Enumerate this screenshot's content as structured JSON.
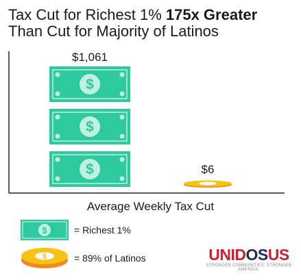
{
  "title": {
    "part1": "Tax Cut for Richest 1% ",
    "bold": "175x Greater",
    "part2": "Than Cut for Majority of Latinos"
  },
  "chart_data": {
    "type": "bar",
    "title": "Tax Cut for Richest 1% 175x Greater Than Cut for Majority of Latinos",
    "xlabel": "Average Weekly Tax Cut",
    "ylabel": "",
    "categories": [
      "Richest 1%",
      "89% of Latinos"
    ],
    "values": [
      1061,
      6
    ],
    "data_labels": [
      "$1,061",
      "$6"
    ],
    "ylim": [
      0,
      1061
    ],
    "grid": false,
    "legend_position": "bottom-left",
    "legend": [
      {
        "label": "= Richest 1%",
        "icon": "dollar-bill-icon",
        "color": "#2fc9a0"
      },
      {
        "label": "= 89% of Latinos",
        "icon": "gold-coin-icon",
        "color": "#f7c215"
      }
    ]
  },
  "colors": {
    "bill": "#2fc9a0",
    "bill_light": "#bff0e0",
    "coin_gold": "#f7c215",
    "coin_orange": "#f08a1a",
    "brand_red": "#d11f2e",
    "brand_navy": "#1f2a5c"
  },
  "brand": {
    "name_part1": "UNID",
    "name_part2": "OS",
    "name_part3": "US",
    "tagline": "STRONGER COMMUNITIES. STRONGER AMERICA."
  }
}
